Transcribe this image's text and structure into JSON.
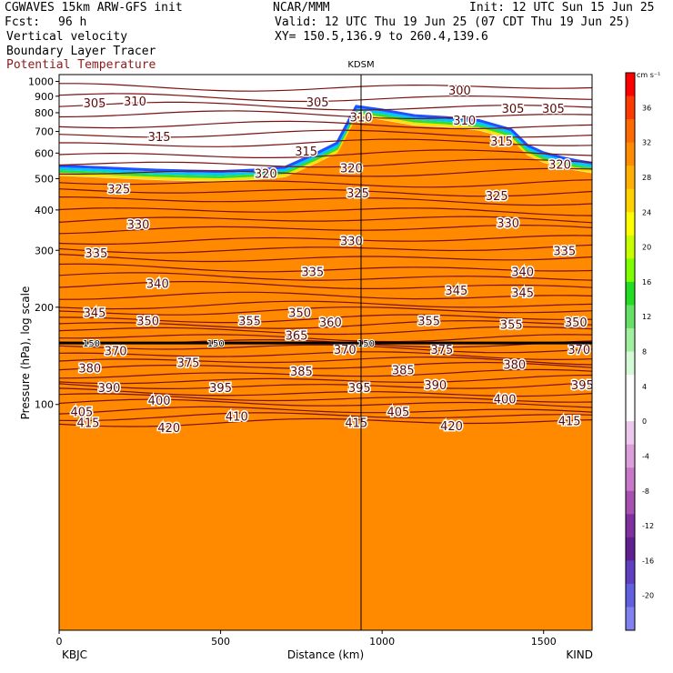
{
  "header": {
    "model": "CGWAVES 15km ARW-GFS init",
    "org": "NCAR/MMM",
    "init": "Init: 12 UTC Sun 15 Jun 25",
    "fcst_label": "Fcst:",
    "fcst_value": "96 h",
    "valid": "Valid: 12 UTC Thu 19 Jun 25 (07 CDT Thu 19 Jun 25)",
    "field1": "Vertical velocity",
    "xy": "XY= 150.5,136.9 to 260.4,139.6",
    "field2": "Boundary Layer Tracer",
    "field3": "Potential Temperature"
  },
  "station_marker": "KDSM",
  "x_left_station": "KBJC",
  "x_right_station": "KIND",
  "colors": {
    "theta_contour": "#7a1010",
    "boundary_fill": "#ff8a00",
    "tropopause_line": "#000000"
  },
  "chart_data": {
    "type": "heatmap",
    "xlabel": "Distance (km)",
    "ylabel": "Pressure (hPa), log scale",
    "x_ticks": [
      0,
      500,
      1000,
      1500
    ],
    "xlim": [
      0,
      1650
    ],
    "y_ticks": [
      100,
      200,
      300,
      400,
      500,
      600,
      700,
      800,
      900,
      1000
    ],
    "ylim": [
      1050,
      20
    ],
    "y_scale": "log",
    "colorbar": {
      "unit": "cm s⁻¹",
      "ticks": [
        36,
        32,
        28,
        24,
        20,
        16,
        12,
        8,
        4,
        0,
        -4,
        -8,
        -12,
        -16,
        -20
      ],
      "colors": [
        "#ff0000",
        "#ff3a00",
        "#ff6a00",
        "#ff8c00",
        "#ffb000",
        "#ffd200",
        "#ffff00",
        "#c8ff00",
        "#7dff00",
        "#22dd22",
        "#66e066",
        "#a0f0a0",
        "#d6fad6",
        "#ffffff",
        "#ffffff",
        "#ecc8ec",
        "#dba0db",
        "#c878c8",
        "#a850b0",
        "#8030a0",
        "#602090",
        "#6040c0",
        "#6060e0",
        "#8080f0"
      ]
    },
    "theta_labels": [
      {
        "v": "415",
        "x": 90,
        "p": 88
      },
      {
        "v": "420",
        "x": 340,
        "p": 85
      },
      {
        "v": "410",
        "x": 550,
        "p": 92
      },
      {
        "v": "415",
        "x": 920,
        "p": 88
      },
      {
        "v": "405",
        "x": 1050,
        "p": 95
      },
      {
        "v": "420",
        "x": 1215,
        "p": 86
      },
      {
        "v": "415",
        "x": 1580,
        "p": 89
      },
      {
        "v": "405",
        "x": 70,
        "p": 95
      },
      {
        "v": "400",
        "x": 310,
        "p": 103
      },
      {
        "v": "395",
        "x": 500,
        "p": 113
      },
      {
        "v": "400",
        "x": 1380,
        "p": 104
      },
      {
        "v": "390",
        "x": 155,
        "p": 113
      },
      {
        "v": "395",
        "x": 930,
        "p": 113
      },
      {
        "v": "390",
        "x": 1165,
        "p": 115
      },
      {
        "v": "395",
        "x": 1620,
        "p": 115
      },
      {
        "v": "380",
        "x": 95,
        "p": 130
      },
      {
        "v": "375",
        "x": 400,
        "p": 135
      },
      {
        "v": "385",
        "x": 750,
        "p": 127
      },
      {
        "v": "385",
        "x": 1065,
        "p": 128
      },
      {
        "v": "380",
        "x": 1410,
        "p": 133
      },
      {
        "v": "370",
        "x": 175,
        "p": 147
      },
      {
        "v": "370",
        "x": 885,
        "p": 148
      },
      {
        "v": "375",
        "x": 1185,
        "p": 148
      },
      {
        "v": "370",
        "x": 1610,
        "p": 148
      },
      {
        "v": "365",
        "x": 735,
        "p": 164
      },
      {
        "v": "360",
        "x": 840,
        "p": 180
      },
      {
        "v": "355",
        "x": 1145,
        "p": 182
      },
      {
        "v": "355",
        "x": 1400,
        "p": 177
      },
      {
        "v": "350",
        "x": 1600,
        "p": 180
      },
      {
        "v": "345",
        "x": 110,
        "p": 193
      },
      {
        "v": "350",
        "x": 275,
        "p": 182
      },
      {
        "v": "355",
        "x": 590,
        "p": 182
      },
      {
        "v": "350",
        "x": 745,
        "p": 193
      },
      {
        "v": "340",
        "x": 305,
        "p": 237
      },
      {
        "v": "345",
        "x": 1230,
        "p": 226
      },
      {
        "v": "345",
        "x": 1435,
        "p": 222
      },
      {
        "v": "340",
        "x": 1435,
        "p": 258
      },
      {
        "v": "335",
        "x": 115,
        "p": 295
      },
      {
        "v": "335",
        "x": 785,
        "p": 258
      },
      {
        "v": "335",
        "x": 1565,
        "p": 300
      },
      {
        "v": "330",
        "x": 245,
        "p": 362
      },
      {
        "v": "330",
        "x": 905,
        "p": 322
      },
      {
        "v": "330",
        "x": 1390,
        "p": 365
      },
      {
        "v": "325",
        "x": 185,
        "p": 465
      },
      {
        "v": "325",
        "x": 925,
        "p": 452
      },
      {
        "v": "325",
        "x": 1355,
        "p": 443
      },
      {
        "v": "320",
        "x": 640,
        "p": 520
      },
      {
        "v": "320",
        "x": 905,
        "p": 540
      },
      {
        "v": "320",
        "x": 1550,
        "p": 555
      },
      {
        "v": "315",
        "x": 310,
        "p": 675
      },
      {
        "v": "315",
        "x": 765,
        "p": 610
      },
      {
        "v": "315",
        "x": 1370,
        "p": 655
      },
      {
        "v": "310",
        "x": 935,
        "p": 777
      },
      {
        "v": "310",
        "x": 1255,
        "p": 760
      },
      {
        "v": "310",
        "x": 235,
        "p": 870
      },
      {
        "v": "305",
        "x": 110,
        "p": 860
      },
      {
        "v": "305",
        "x": 800,
        "p": 865
      },
      {
        "v": "305",
        "x": 1405,
        "p": 825
      },
      {
        "v": "305",
        "x": 1530,
        "p": 825
      },
      {
        "v": "300",
        "x": 1240,
        "p": 940
      }
    ],
    "tropopause_labels": [
      {
        "v": "150",
        "x": 100,
        "p": 155
      },
      {
        "v": "150",
        "x": 485,
        "p": 155
      },
      {
        "v": "150",
        "x": 950,
        "p": 155
      }
    ]
  }
}
